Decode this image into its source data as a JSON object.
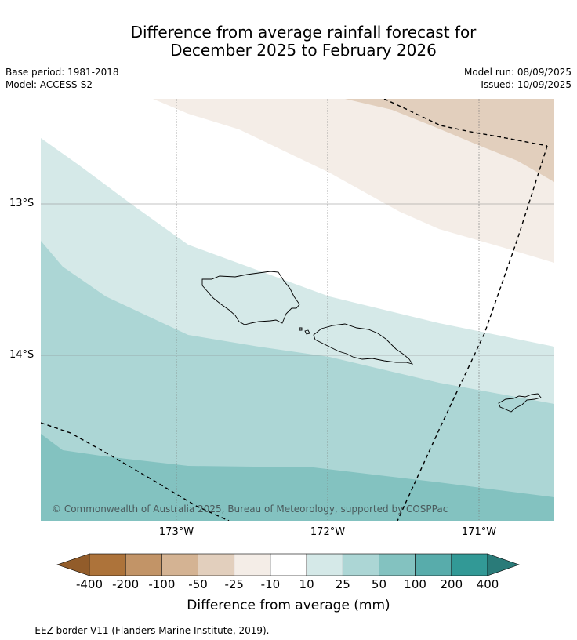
{
  "title_line1": "Difference from average rainfall forecast for",
  "title_line2": "December 2025 to February 2026",
  "meta": {
    "base_period": "Base period: 1981-2018",
    "model": "Model: ACCESS-S2",
    "model_run": "Model run: 08/09/2025",
    "issued": "Issued: 10/09/2025"
  },
  "map": {
    "lat_labels": [
      "13°S",
      "14°S"
    ],
    "lon_labels": [
      "173°W",
      "172°W",
      "171°W"
    ],
    "copyright": "© Commonwealth of Australia 2025, Bureau of Meteorology, supported by COSPPac",
    "zone_colors": {
      "dry_25": "#e2cfbd",
      "dry_10": "#f4ede7",
      "wet_10": "#d5e9e8",
      "wet_25": "#acd6d5",
      "wet_50": "#83c2c0"
    }
  },
  "colorbar": {
    "ticks": [
      "-400",
      "-200",
      "-100",
      "-50",
      "-25",
      "-10",
      "10",
      "25",
      "50",
      "100",
      "200",
      "400"
    ],
    "colors": [
      "#ad733a",
      "#c29467",
      "#d4b393",
      "#e2cfbd",
      "#f4ede7",
      "#ffffff",
      "#d5e9e8",
      "#acd6d5",
      "#83c2c0",
      "#58acab",
      "#329996"
    ],
    "extend_low_color": "#925c2a",
    "extend_high_color": "#2a7b79",
    "label": "Difference from average (mm)"
  },
  "legend_note": "--  --  -- EEZ border V11 (Flanders Marine Institute, 2019)."
}
